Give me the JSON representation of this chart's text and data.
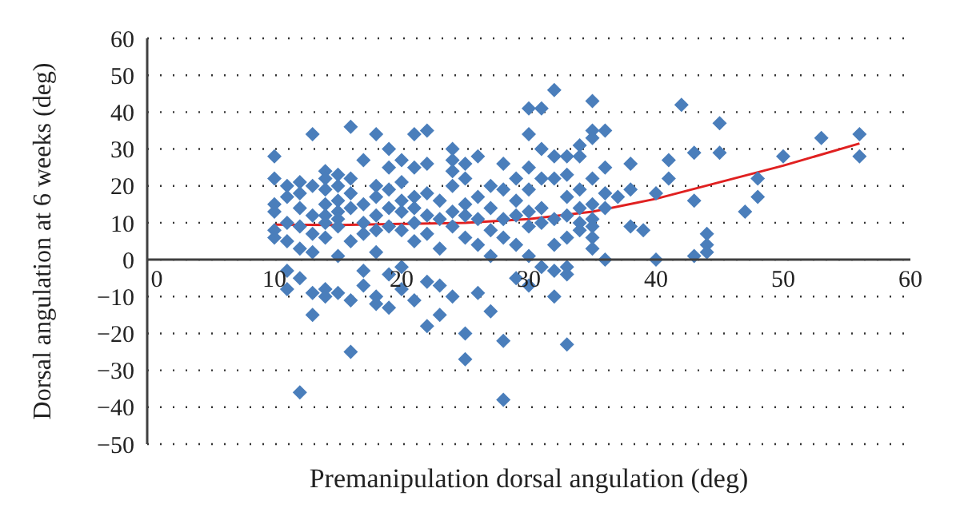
{
  "chart_data": {
    "type": "scatter",
    "xlabel": "Premanipulation dorsal angulation (deg)",
    "ylabel": "Dorsal angulation at 6 weeks (deg)",
    "xlim": [
      0,
      60
    ],
    "xticks": [
      0,
      10,
      20,
      30,
      40,
      50,
      60
    ],
    "ylim": [
      -50,
      60
    ],
    "yticks": [
      -50,
      -40,
      -30,
      -20,
      -10,
      0,
      10,
      20,
      30,
      40,
      50,
      60
    ],
    "grid": "y",
    "legend": false,
    "marker": "diamond",
    "series": [
      {
        "type": "scatter",
        "color": "#4a7ebb",
        "x": [
          10,
          10,
          10,
          10,
          10,
          10,
          11,
          11,
          11,
          11,
          11,
          11,
          12,
          12,
          12,
          12,
          12,
          12,
          12,
          13,
          13,
          13,
          13,
          13,
          13,
          13,
          14,
          14,
          14,
          14,
          14,
          14,
          14,
          14,
          14,
          15,
          15,
          15,
          15,
          15,
          15,
          15,
          15,
          16,
          16,
          16,
          16,
          16,
          16,
          16,
          17,
          17,
          17,
          17,
          17,
          17,
          18,
          18,
          18,
          18,
          18,
          18,
          18,
          18,
          19,
          19,
          19,
          19,
          19,
          19,
          19,
          20,
          20,
          20,
          20,
          20,
          20,
          20,
          21,
          21,
          21,
          21,
          21,
          21,
          21,
          22,
          22,
          22,
          22,
          22,
          22,
          22,
          23,
          23,
          23,
          23,
          23,
          24,
          24,
          24,
          24,
          24,
          24,
          24,
          25,
          25,
          25,
          25,
          25,
          25,
          25,
          26,
          26,
          26,
          26,
          26,
          27,
          27,
          27,
          27,
          27,
          28,
          28,
          28,
          28,
          28,
          28,
          29,
          29,
          29,
          29,
          29,
          30,
          30,
          30,
          30,
          30,
          30,
          30,
          30,
          31,
          31,
          31,
          31,
          31,
          31,
          32,
          32,
          32,
          32,
          32,
          32,
          32,
          33,
          33,
          33,
          33,
          33,
          33,
          33,
          33,
          34,
          34,
          34,
          34,
          34,
          34,
          35,
          35,
          35,
          35,
          35,
          35,
          35,
          35,
          35,
          36,
          36,
          36,
          36,
          36,
          37,
          38,
          38,
          38,
          39,
          40,
          40,
          41,
          41,
          42,
          43,
          43,
          43,
          44,
          44,
          44,
          45,
          45,
          47,
          48,
          48,
          50,
          53,
          56,
          56
        ],
        "values": [
          28,
          22,
          15,
          13,
          8,
          6,
          20,
          17,
          10,
          5,
          -3,
          -8,
          21,
          18,
          14,
          9,
          3,
          -5,
          -36,
          34,
          20,
          12,
          7,
          2,
          -9,
          -15,
          24,
          22,
          19,
          15,
          12,
          10,
          6,
          -8,
          -10,
          23,
          20,
          16,
          13,
          11,
          9,
          1,
          -9,
          36,
          22,
          18,
          14,
          5,
          -11,
          -25,
          27,
          15,
          10,
          7,
          -3,
          -7,
          34,
          20,
          17,
          12,
          8,
          2,
          -10,
          -12,
          30,
          25,
          19,
          14,
          9,
          -4,
          -13,
          27,
          21,
          16,
          13,
          8,
          -2,
          -8,
          34,
          25,
          17,
          14,
          10,
          5,
          -11,
          35,
          26,
          18,
          12,
          7,
          -6,
          -18,
          16,
          11,
          3,
          -7,
          -15,
          30,
          27,
          24,
          20,
          13,
          9,
          -10,
          26,
          22,
          15,
          12,
          6,
          -20,
          -27,
          28,
          17,
          11,
          4,
          -9,
          20,
          14,
          8,
          1,
          -14,
          26,
          19,
          11,
          6,
          -22,
          -38,
          22,
          16,
          12,
          4,
          -5,
          41,
          34,
          25,
          19,
          13,
          9,
          1,
          -7,
          41,
          30,
          22,
          14,
          10,
          -2,
          46,
          28,
          22,
          11,
          4,
          -3,
          -10,
          28,
          23,
          17,
          12,
          6,
          -2,
          -4,
          -23,
          31,
          28,
          19,
          14,
          10,
          8,
          43,
          35,
          33,
          22,
          15,
          11,
          9,
          6,
          3,
          35,
          25,
          18,
          14,
          0,
          17,
          26,
          19,
          9,
          8,
          18,
          0,
          27,
          22,
          42,
          29,
          16,
          1,
          7,
          4,
          2,
          37,
          29,
          13,
          22,
          17,
          28,
          33,
          34,
          28
        ]
      },
      {
        "type": "line",
        "color": "#e02020",
        "marker": "none",
        "line_style": "solid",
        "x": [
          10,
          15,
          20,
          25,
          30,
          35,
          40,
          45,
          50,
          56
        ],
        "values": [
          9.5,
          9.4,
          9.7,
          10,
          11,
          13,
          16.5,
          21,
          25.5,
          31.5
        ]
      }
    ]
  }
}
